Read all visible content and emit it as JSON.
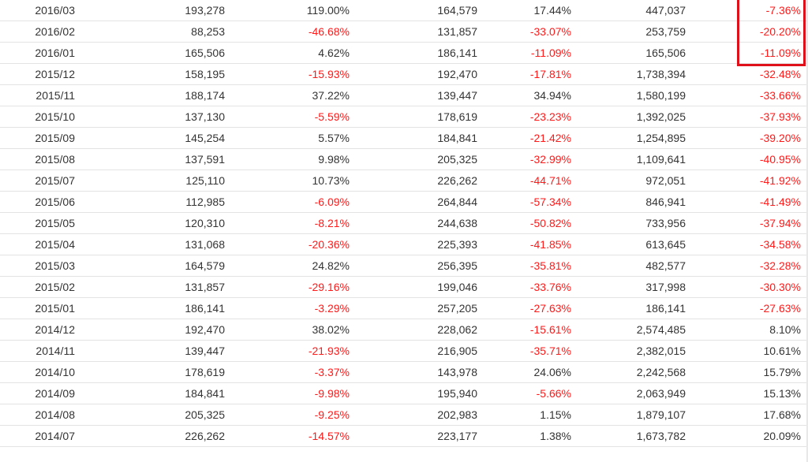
{
  "rows": [
    [
      "2016/03",
      "193,278",
      "119.00%",
      "164,579",
      "17.44%",
      "447,037",
      "-7.36%"
    ],
    [
      "2016/02",
      "88,253",
      "-46.68%",
      "131,857",
      "-33.07%",
      "253,759",
      "-20.20%"
    ],
    [
      "2016/01",
      "165,506",
      "4.62%",
      "186,141",
      "-11.09%",
      "165,506",
      "-11.09%"
    ],
    [
      "2015/12",
      "158,195",
      "-15.93%",
      "192,470",
      "-17.81%",
      "1,738,394",
      "-32.48%"
    ],
    [
      "2015/11",
      "188,174",
      "37.22%",
      "139,447",
      "34.94%",
      "1,580,199",
      "-33.66%"
    ],
    [
      "2015/10",
      "137,130",
      "-5.59%",
      "178,619",
      "-23.23%",
      "1,392,025",
      "-37.93%"
    ],
    [
      "2015/09",
      "145,254",
      "5.57%",
      "184,841",
      "-21.42%",
      "1,254,895",
      "-39.20%"
    ],
    [
      "2015/08",
      "137,591",
      "9.98%",
      "205,325",
      "-32.99%",
      "1,109,641",
      "-40.95%"
    ],
    [
      "2015/07",
      "125,110",
      "10.73%",
      "226,262",
      "-44.71%",
      "972,051",
      "-41.92%"
    ],
    [
      "2015/06",
      "112,985",
      "-6.09%",
      "264,844",
      "-57.34%",
      "846,941",
      "-41.49%"
    ],
    [
      "2015/05",
      "120,310",
      "-8.21%",
      "244,638",
      "-50.82%",
      "733,956",
      "-37.94%"
    ],
    [
      "2015/04",
      "131,068",
      "-20.36%",
      "225,393",
      "-41.85%",
      "613,645",
      "-34.58%"
    ],
    [
      "2015/03",
      "164,579",
      "24.82%",
      "256,395",
      "-35.81%",
      "482,577",
      "-32.28%"
    ],
    [
      "2015/02",
      "131,857",
      "-29.16%",
      "199,046",
      "-33.76%",
      "317,998",
      "-30.30%"
    ],
    [
      "2015/01",
      "186,141",
      "-3.29%",
      "257,205",
      "-27.63%",
      "186,141",
      "-27.63%"
    ],
    [
      "2014/12",
      "192,470",
      "38.02%",
      "228,062",
      "-15.61%",
      "2,574,485",
      "8.10%"
    ],
    [
      "2014/11",
      "139,447",
      "-21.93%",
      "216,905",
      "-35.71%",
      "2,382,015",
      "10.61%"
    ],
    [
      "2014/10",
      "178,619",
      "-3.37%",
      "143,978",
      "24.06%",
      "2,242,568",
      "15.79%"
    ],
    [
      "2014/09",
      "184,841",
      "-9.98%",
      "195,940",
      "-5.66%",
      "2,063,949",
      "15.13%"
    ],
    [
      "2014/08",
      "205,325",
      "-9.25%",
      "202,983",
      "1.15%",
      "1,879,107",
      "17.68%"
    ],
    [
      "2014/07",
      "226,262",
      "-14.57%",
      "223,177",
      "1.38%",
      "1,673,782",
      "20.09%"
    ]
  ],
  "colors": {
    "text": "#333333",
    "negative": "#ff1a1a",
    "highlight_border": "#e0101a",
    "row_divider": "#e3e3e3"
  }
}
